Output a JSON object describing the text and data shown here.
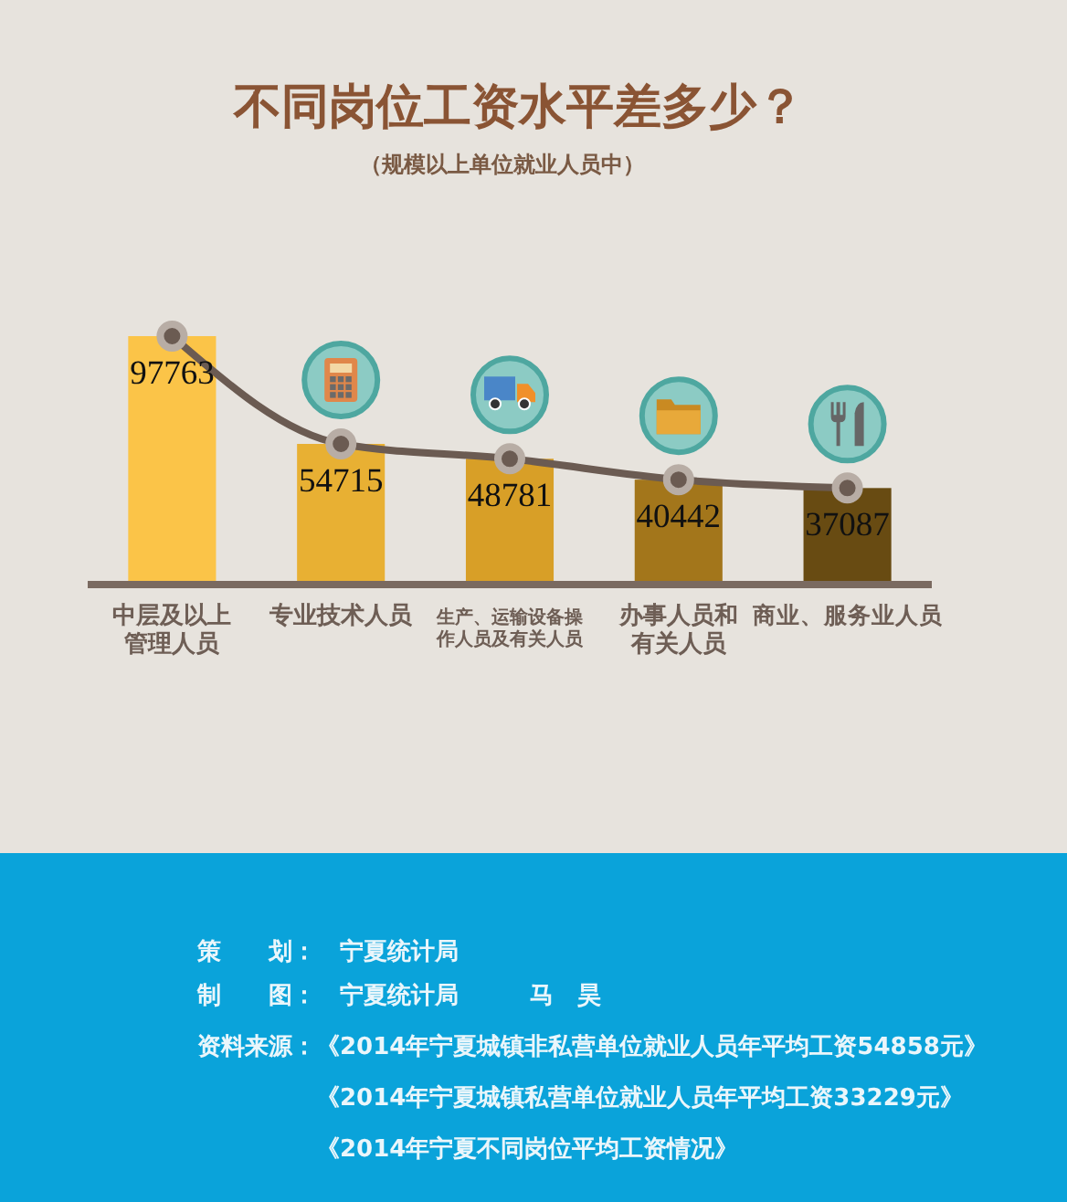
{
  "chart_data": {
    "type": "bar",
    "title": "不同岗位工资水平差多少？",
    "subtitle": "（规模以上单位就业人员中）",
    "categories": [
      "中层及以上管理人员",
      "专业技术人员",
      "生产、运输设备操作人员及有关人员",
      "办事人员和有关人员",
      "商业、服务业人员"
    ],
    "series": [
      {
        "colors": [
          "#fbc448",
          "#e8b033",
          "#d89f27",
          "#a3761b",
          "#684b12"
        ],
        "values": [
          97763,
          54715,
          48781,
          40442,
          37087
        ],
        "value_labels": [
          "97763",
          "54715",
          "48781",
          "40442",
          "37087"
        ]
      },
      {
        "type": "line",
        "color": "#6b5b52",
        "values": [
          97763,
          54715,
          48781,
          40442,
          37087
        ]
      }
    ],
    "marker": "circle",
    "annotations": [
      "策　　划：　宁夏统计局",
      "制　　图：　宁夏统计局　　　马　昊",
      "资料来源：《2014年宁夏城镇非私营单位就业人员年平均工资54858元》",
      "《2014年宁夏城镇私营单位就业人员年平均工资33229元》",
      "《2014年宁夏不同岗位平均工资情况》"
    ]
  }
}
